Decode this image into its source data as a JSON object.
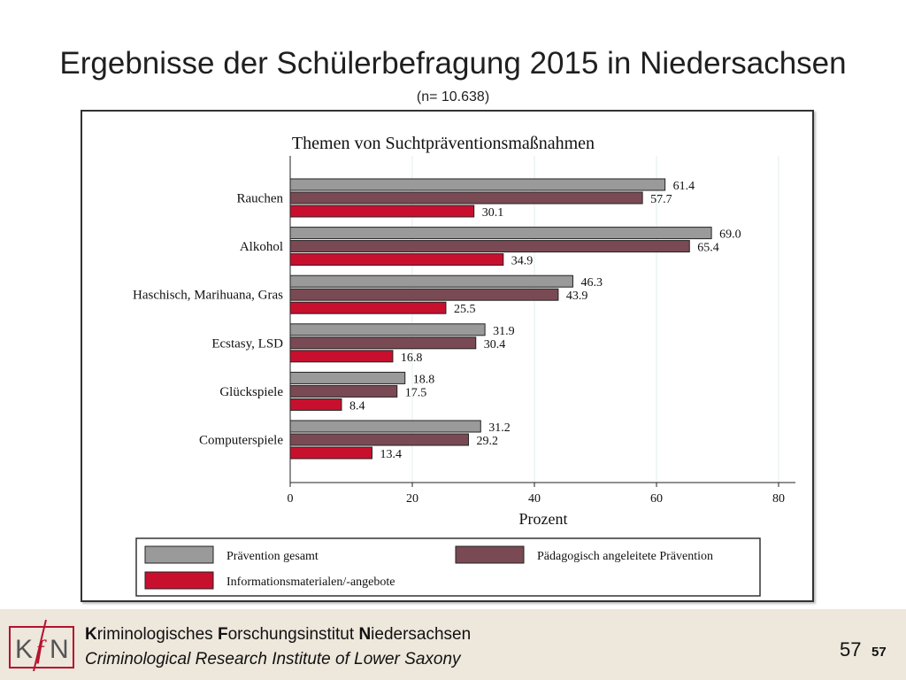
{
  "slide": {
    "title": "Ergebnisse der Schülerbefragung 2015 in Niedersachsen",
    "subtitle": "(n= 10.638)"
  },
  "chart_data": {
    "type": "bar",
    "orientation": "horizontal",
    "title": "Themen von Suchtpräventionsmaßnahmen",
    "xlabel": "Prozent",
    "ylabel": "",
    "xlim": [
      0,
      80
    ],
    "xticks": [
      0,
      20,
      40,
      60,
      80
    ],
    "grid": true,
    "legend_position": "bottom",
    "categories": [
      "Rauchen",
      "Alkohol",
      "Haschisch, Marihuana, Gras",
      "Ecstasy, LSD",
      "Glückspiele",
      "Computerspiele"
    ],
    "series": [
      {
        "name": "Prävention gesamt",
        "color": "#9a9a9a",
        "values": [
          61.4,
          69.0,
          46.3,
          31.9,
          18.8,
          31.2
        ],
        "labels": [
          "61.4",
          "69.0",
          "46.3",
          "31.9",
          "18.8",
          "31.2"
        ]
      },
      {
        "name": "Pädagogisch angeleitete Prävention",
        "color": "#7a4a54",
        "values": [
          57.7,
          65.4,
          43.9,
          30.4,
          17.5,
          29.2
        ],
        "labels": [
          "57.7",
          "65.4",
          "43.9",
          "30.4",
          "17.5",
          "29.2"
        ]
      },
      {
        "name": "Informationsmaterialen/-angebote",
        "color": "#c8102e",
        "values": [
          30.1,
          34.9,
          25.5,
          16.8,
          8.4,
          13.4
        ],
        "labels": [
          "30.1",
          "34.9",
          "25.5",
          "16.8",
          "8.4",
          "13.4"
        ]
      }
    ]
  },
  "footer": {
    "logo_text": {
      "k": "K",
      "f": "f",
      "n": "N"
    },
    "institute_parts": [
      {
        "bold": "K",
        "rest": "riminologisches "
      },
      {
        "bold": "F",
        "rest": "orschungsinstitut "
      },
      {
        "bold": "N",
        "rest": "iedersachsen"
      }
    ],
    "institute_en": "Criminological Research Institute of Lower Saxony",
    "page_number": "57",
    "page_number_small": "57",
    "logo_color": "#b5122e"
  }
}
